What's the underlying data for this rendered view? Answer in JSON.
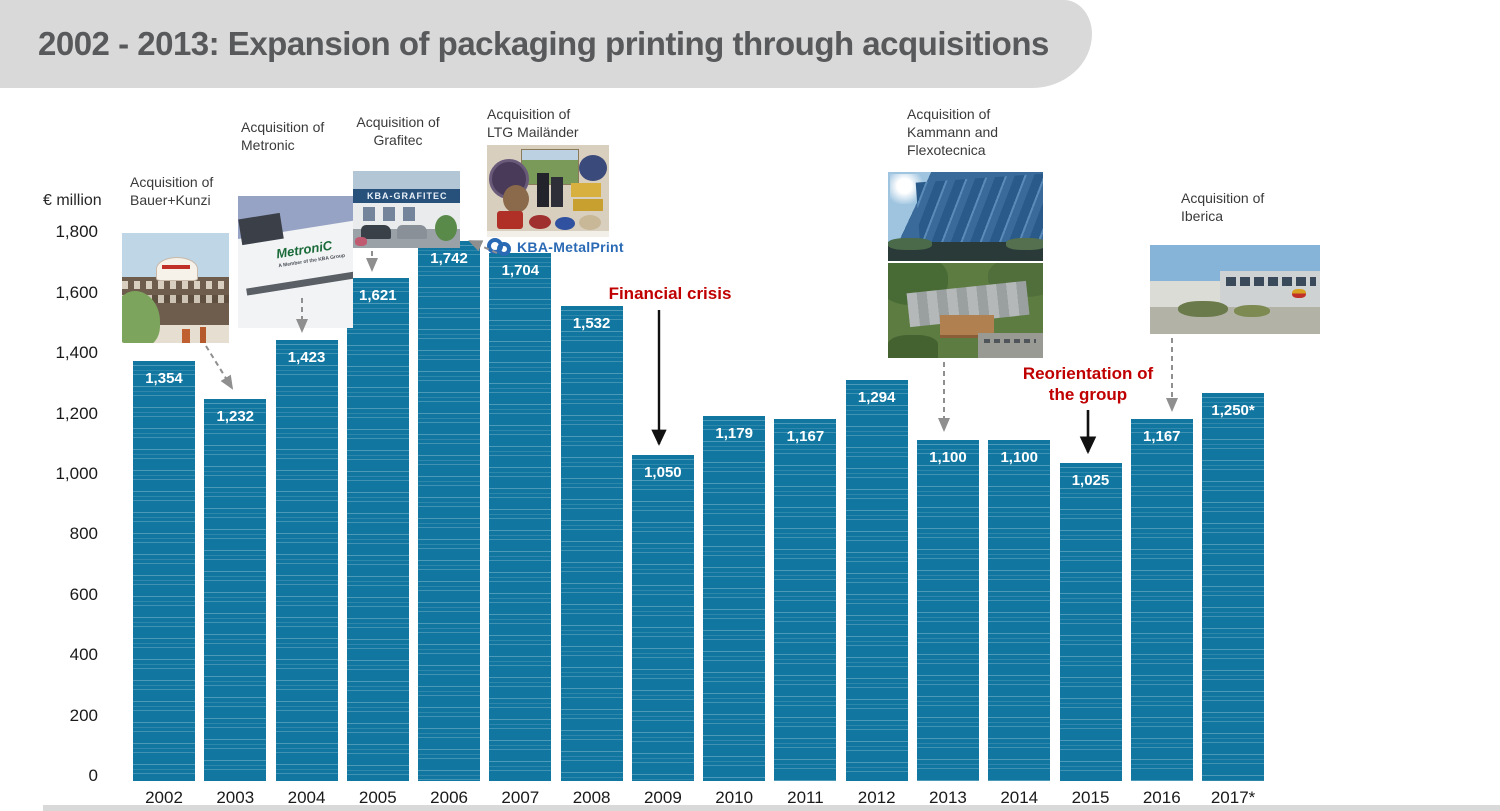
{
  "slide": {
    "title": "2002 - 2013: Expansion of packaging printing through acquisitions"
  },
  "chart_data": {
    "type": "bar",
    "title": "2002 - 2013: Expansion of packaging printing through acquisitions",
    "ylabel": "€ million",
    "xlabel": "",
    "categories": [
      "2002",
      "2003",
      "2004",
      "2005",
      "2006",
      "2007",
      "2008",
      "2009",
      "2010",
      "2011",
      "2012",
      "2013",
      "2014",
      "2015",
      "2016",
      "2017*"
    ],
    "values": [
      1354,
      1232,
      1423,
      1621,
      1742,
      1704,
      1532,
      1050,
      1179,
      1167,
      1294,
      1100,
      1100,
      1025,
      1167,
      1250
    ],
    "value_labels": [
      "1,354",
      "1,232",
      "1,423",
      "1,621",
      "1,742",
      "1,704",
      "1,532",
      "1,050",
      "1,179",
      "1,167",
      "1,294",
      "1,100",
      "1,100",
      "1,025",
      "1,167",
      "1,250*"
    ],
    "ylim": [
      0,
      1800
    ],
    "ytick_step": 200,
    "ytick_labels": [
      "1,800",
      "1,600",
      "1,400",
      "1,200",
      "1,000",
      "800",
      "600",
      "400",
      "200",
      "0"
    ],
    "grid": false,
    "legend": "none",
    "bar_color": "#1277a0"
  },
  "annotations": {
    "bauer": {
      "line1": "Acquisition of",
      "line2": "Bauer+Kunzi"
    },
    "metronic": {
      "line1": "Acquisition of",
      "line2": "Metronic"
    },
    "grafitec": {
      "line1": "Acquisition of",
      "line2": "Grafitec"
    },
    "ltg": {
      "line1": "Acquisition of",
      "line2": "LTG Mailänder"
    },
    "kammann": {
      "line1": "Acquisition of",
      "line2": "Kammann and",
      "line3": "Flexotecnica"
    },
    "iberica": {
      "line1": "Acquisition of",
      "line2": "Iberica"
    },
    "financial_crisis": "Financial crisis",
    "reorientation": {
      "line1": "Reorientation of",
      "line2": "the group"
    }
  },
  "logos": {
    "kba_metalprint": "KBA-MetalPrint",
    "metronic_sign": "MetroniC",
    "metronic_sub": "A Member of the KBA Group",
    "grafitec_sign": "KBA-GRAFITEC"
  },
  "colors": {
    "bar": "#1277a0",
    "accent_red": "#c00000",
    "title_gray": "#58595b",
    "banner_gray": "#d9d9d9",
    "arrow_gray": "#8f8f8f",
    "arrow_black": "#111111",
    "kba_blue": "#2a6ab5"
  }
}
